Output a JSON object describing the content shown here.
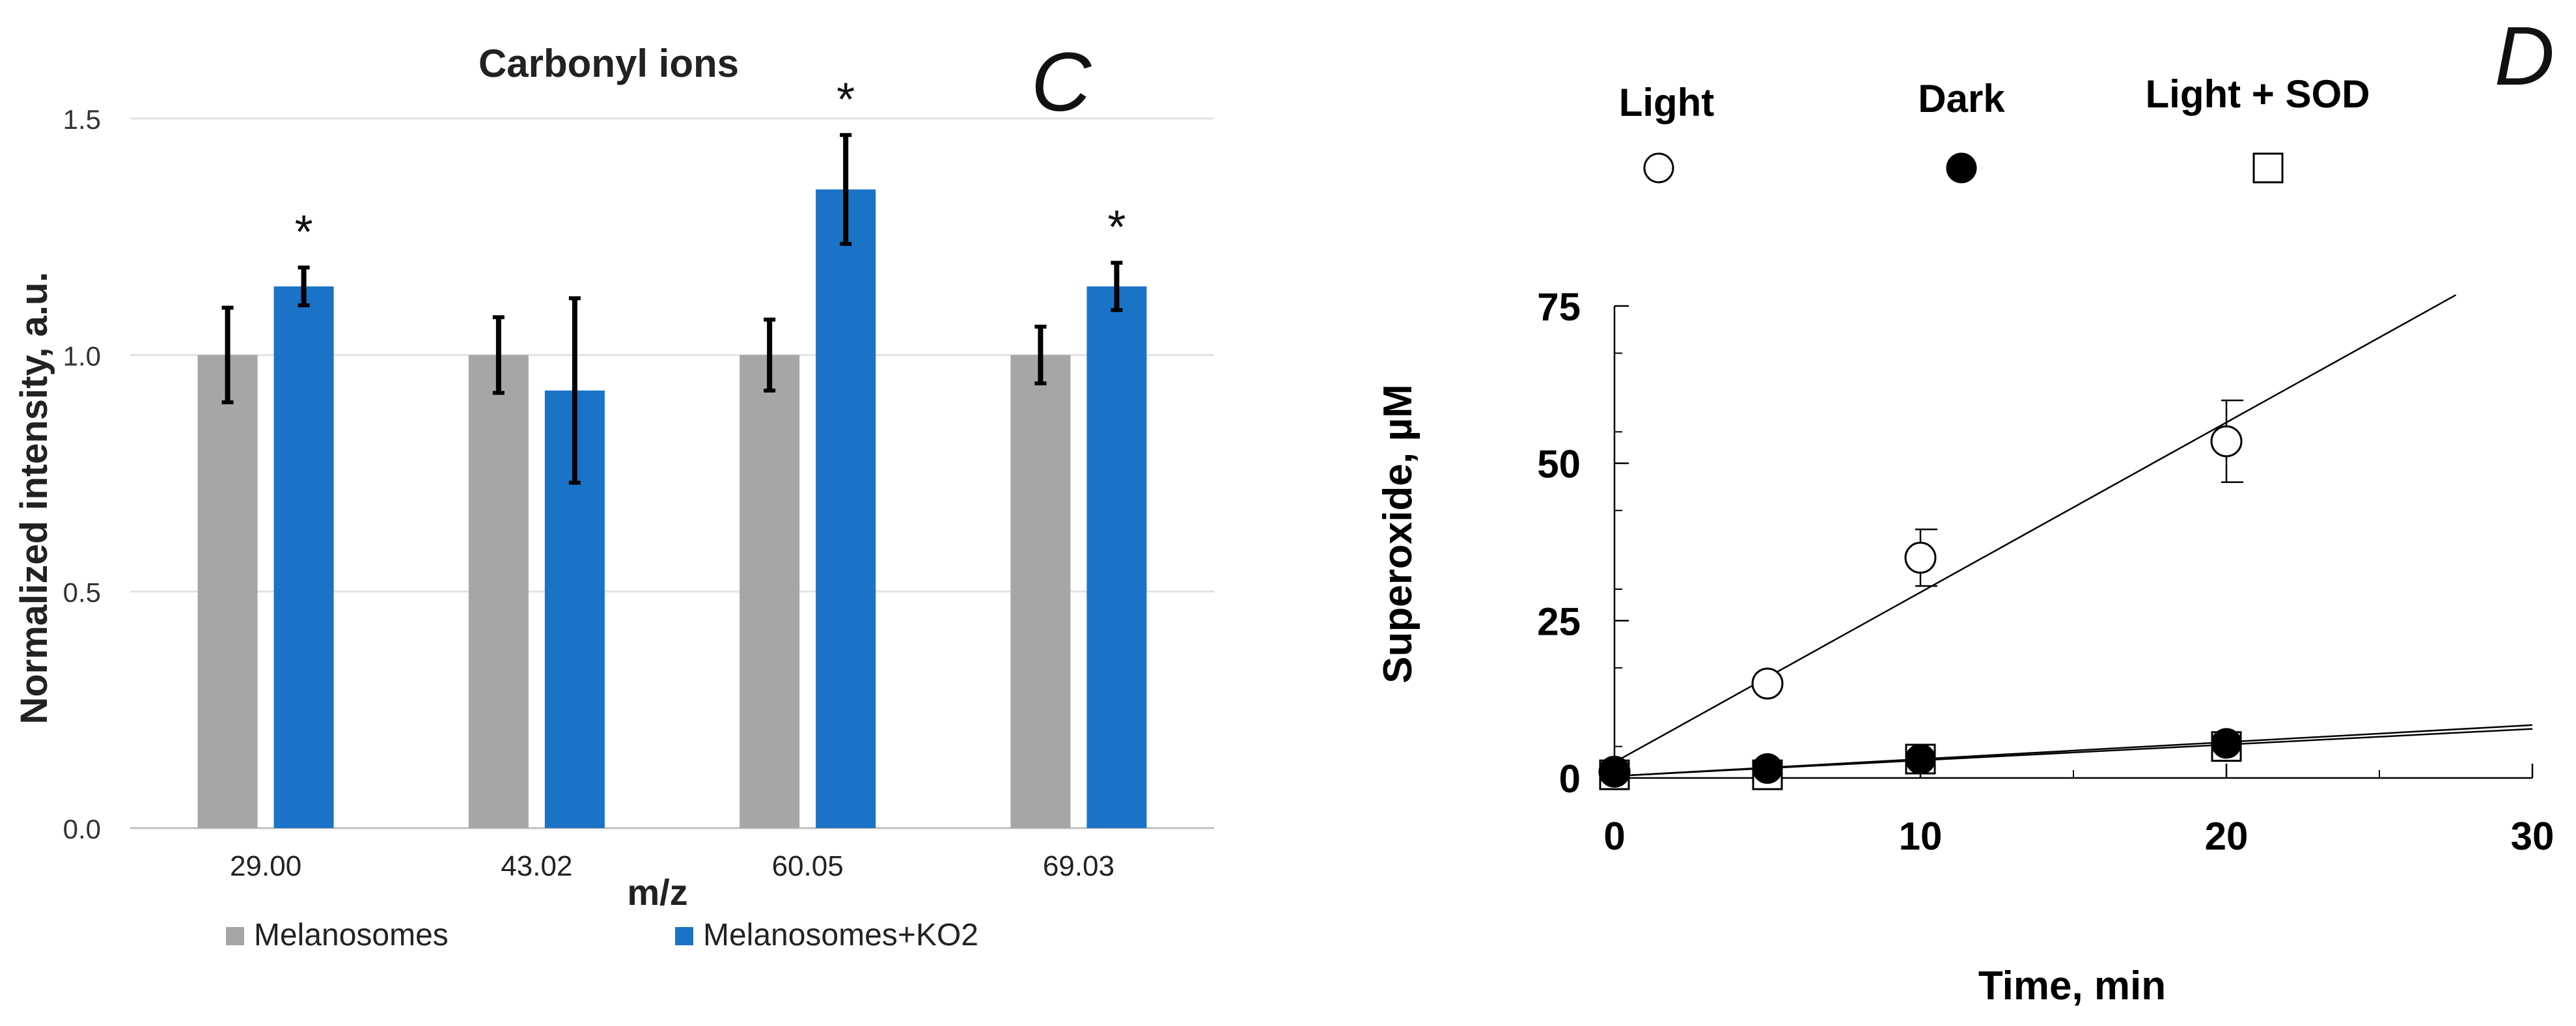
{
  "chart_data": [
    {
      "type": "bar",
      "panel_label": "C",
      "title": "Carbonyl ions",
      "xlabel": "m/z",
      "ylabel": "Normalized intensity, a.u.",
      "categories": [
        "29.00",
        "43.02",
        "60.05",
        "69.03"
      ],
      "ylim": [
        0.0,
        1.5
      ],
      "yticks": [
        "0.0",
        "0.5",
        "1.0",
        "1.5"
      ],
      "grid": true,
      "legend_position": "bottom",
      "series": [
        {
          "name": "Melanosomes",
          "color": "#a6a6a6",
          "values": [
            1.0,
            1.0,
            1.0,
            1.0
          ],
          "errors": [
            0.1,
            0.08,
            0.075,
            0.06
          ]
        },
        {
          "name": "Melanosomes+KO2",
          "color": "#1b73c7",
          "values": [
            1.145,
            0.925,
            1.35,
            1.145
          ],
          "errors": [
            0.04,
            0.195,
            0.115,
            0.05
          ]
        }
      ],
      "annotations": [
        {
          "category": "29.00",
          "series": "Melanosomes+KO2",
          "text": "*"
        },
        {
          "category": "60.05",
          "series": "Melanosomes+KO2",
          "text": "*"
        },
        {
          "category": "69.03",
          "series": "Melanosomes+KO2",
          "text": "*"
        }
      ]
    },
    {
      "type": "scatter",
      "panel_label": "D",
      "xlabel": "Time, min",
      "ylabel": "Superoxide, µM",
      "xlim": [
        0,
        30
      ],
      "ylim": [
        0,
        75
      ],
      "xticks": [
        "0",
        "10",
        "20",
        "30"
      ],
      "yticks": [
        "0",
        "25",
        "50",
        "75"
      ],
      "grid": false,
      "legend_position": "top",
      "series": [
        {
          "name": "Light",
          "marker": "open-circle",
          "x": [
            0,
            5,
            10,
            20
          ],
          "y": [
            1,
            15,
            35,
            53.5
          ],
          "errors": [
            0,
            0,
            4.5,
            6.5
          ],
          "fit": {
            "slope": 2.7,
            "intercept": 2.5,
            "x_end": 27.5
          }
        },
        {
          "name": "Dark",
          "marker": "filled-circle",
          "x": [
            0,
            5,
            10,
            20
          ],
          "y": [
            1,
            1.5,
            3,
            5.5
          ],
          "errors": [
            0,
            0,
            0,
            0
          ],
          "fit": {
            "slope": 0.27,
            "intercept": 0.3,
            "x_end": 30
          }
        },
        {
          "name": "Light + SOD",
          "marker": "open-square",
          "x": [
            0,
            5,
            10,
            20
          ],
          "y": [
            0.5,
            0.5,
            3,
            5
          ],
          "errors": [
            0,
            0,
            0,
            0
          ],
          "fit": {
            "slope": 0.25,
            "intercept": 0.3,
            "x_end": 30
          }
        }
      ]
    }
  ]
}
